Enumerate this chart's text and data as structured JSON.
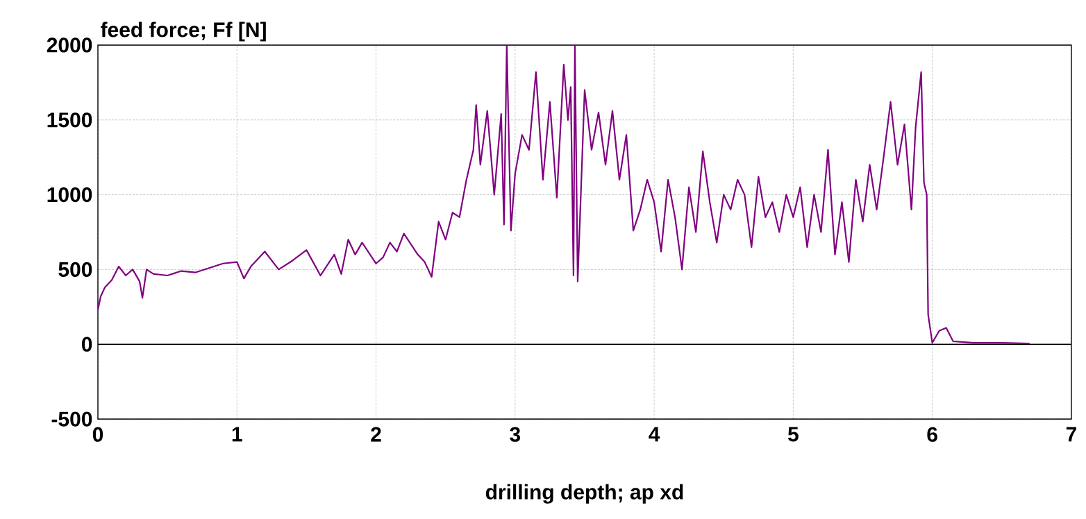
{
  "chart_data": {
    "type": "line",
    "ylabel": "feed force; Ff [N]",
    "xlabel": "drilling depth; ap xd",
    "x": [
      0,
      0.02,
      0.05,
      0.1,
      0.15,
      0.2,
      0.25,
      0.3,
      0.32,
      0.35,
      0.4,
      0.5,
      0.6,
      0.7,
      0.8,
      0.9,
      1.0,
      1.05,
      1.1,
      1.2,
      1.3,
      1.4,
      1.5,
      1.6,
      1.7,
      1.75,
      1.8,
      1.85,
      1.9,
      2.0,
      2.05,
      2.1,
      2.15,
      2.2,
      2.3,
      2.35,
      2.4,
      2.45,
      2.5,
      2.55,
      2.6,
      2.65,
      2.7,
      2.72,
      2.75,
      2.8,
      2.85,
      2.9,
      2.92,
      2.94,
      2.97,
      3.0,
      3.05,
      3.1,
      3.15,
      3.2,
      3.25,
      3.3,
      3.35,
      3.38,
      3.4,
      3.42,
      3.43,
      3.45,
      3.5,
      3.55,
      3.6,
      3.65,
      3.7,
      3.75,
      3.8,
      3.85,
      3.9,
      3.95,
      4.0,
      4.05,
      4.1,
      4.15,
      4.2,
      4.25,
      4.3,
      4.35,
      4.4,
      4.45,
      4.5,
      4.55,
      4.6,
      4.65,
      4.7,
      4.75,
      4.8,
      4.85,
      4.9,
      4.95,
      5.0,
      5.05,
      5.1,
      5.15,
      5.2,
      5.25,
      5.3,
      5.35,
      5.4,
      5.45,
      5.5,
      5.55,
      5.6,
      5.65,
      5.7,
      5.75,
      5.8,
      5.85,
      5.88,
      5.92,
      5.94,
      5.96,
      5.97,
      6.0,
      6.05,
      6.1,
      6.15,
      6.3,
      6.5,
      6.7
    ],
    "values": [
      230,
      320,
      380,
      430,
      520,
      460,
      500,
      420,
      310,
      500,
      470,
      460,
      490,
      480,
      510,
      540,
      550,
      440,
      520,
      620,
      500,
      560,
      630,
      460,
      600,
      470,
      700,
      600,
      680,
      540,
      580,
      680,
      620,
      740,
      600,
      550,
      450,
      820,
      700,
      880,
      850,
      1100,
      1300,
      1600,
      1200,
      1560,
      1000,
      1540,
      800,
      2000,
      760,
      1140,
      1400,
      1300,
      1820,
      1100,
      1620,
      980,
      1870,
      1500,
      1720,
      460,
      2000,
      420,
      1700,
      1300,
      1550,
      1200,
      1560,
      1100,
      1400,
      760,
      900,
      1100,
      950,
      620,
      1100,
      850,
      500,
      1050,
      750,
      1290,
      950,
      680,
      1000,
      900,
      1100,
      1000,
      650,
      1120,
      850,
      950,
      750,
      1000,
      850,
      1050,
      650,
      1000,
      750,
      1300,
      600,
      950,
      550,
      1100,
      820,
      1200,
      900,
      1250,
      1620,
      1200,
      1470,
      900,
      1450,
      1820,
      1080,
      1000,
      200,
      10,
      90,
      110,
      20,
      10,
      10,
      5
    ],
    "color": "#800080",
    "xlim": [
      0,
      7
    ],
    "ylim": [
      -500,
      2000
    ],
    "xticks": [
      0,
      1,
      2,
      3,
      4,
      5,
      6,
      7
    ],
    "yticks": [
      -500,
      0,
      500,
      1000,
      1500,
      2000
    ],
    "grid": true,
    "ref_lines": [
      {
        "axis": "y",
        "value": 0
      }
    ]
  }
}
